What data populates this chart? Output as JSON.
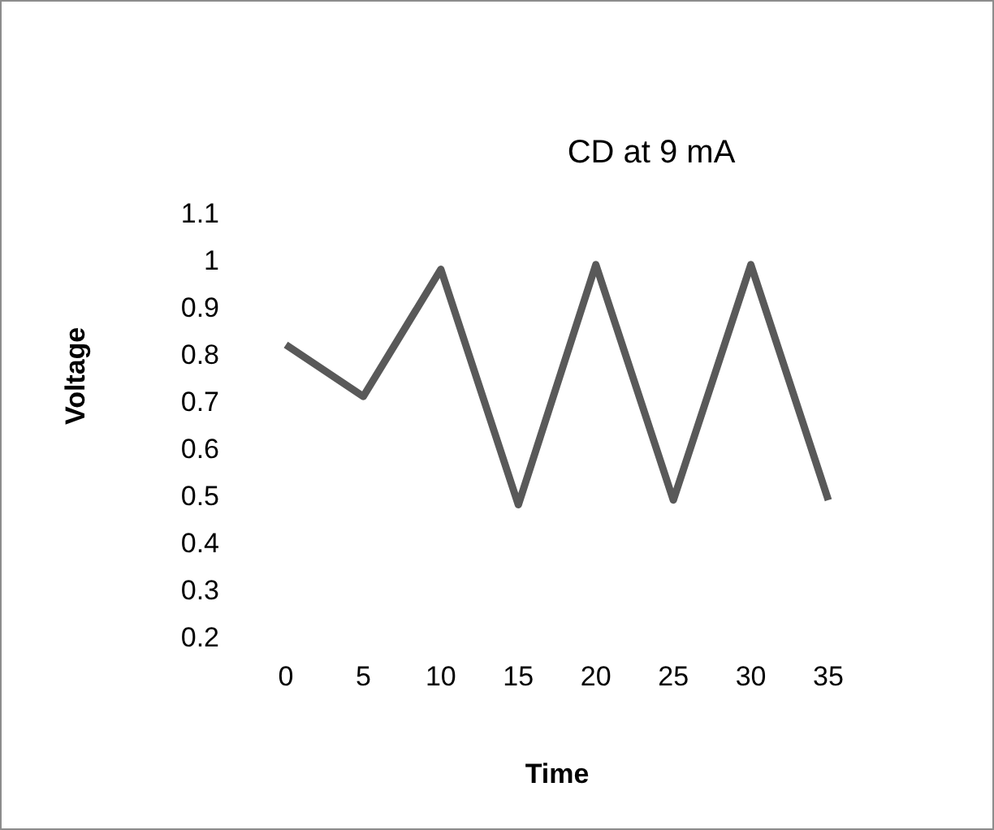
{
  "chart_data": {
    "type": "line",
    "title": "CD at 9 mA",
    "xlabel": "Time",
    "ylabel": "Voltage",
    "categories": [
      "0",
      "5",
      "10",
      "15",
      "20",
      "25",
      "30",
      "35"
    ],
    "series": [
      {
        "color": "#595959",
        "values": [
          0.82,
          0.71,
          0.98,
          0.48,
          0.99,
          0.49,
          0.99,
          0.49
        ]
      }
    ],
    "ylim": [
      0.2,
      1.1
    ],
    "yticks": [
      0.2,
      0.3,
      0.4,
      0.5,
      0.6,
      0.7,
      0.8,
      0.9,
      1,
      1.1
    ],
    "grid": false,
    "marker": "none",
    "line_style": "solid"
  }
}
